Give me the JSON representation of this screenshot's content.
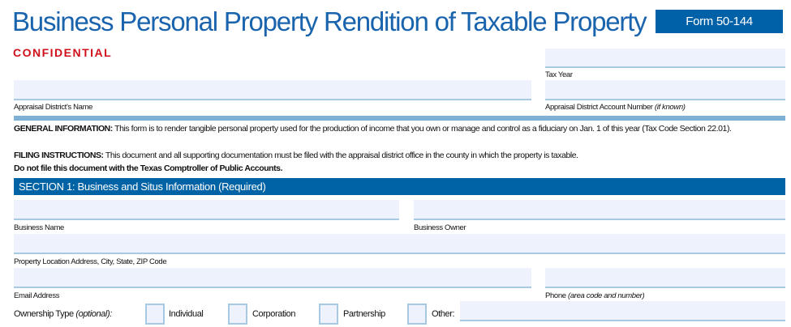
{
  "header": {
    "title": "Business Personal Property Rendition of Taxable Property",
    "form_number": "Form 50-144",
    "confidential": "CONFIDENTIAL"
  },
  "top_fields": {
    "tax_year": {
      "label": "Tax Year",
      "value": ""
    },
    "appraisal_district_name": {
      "label": "Appraisal District's Name",
      "value": ""
    },
    "account_number": {
      "label": "Appraisal District Account Number",
      "label_note": "(if known)",
      "value": ""
    }
  },
  "info": {
    "general_heading": "GENERAL INFORMATION:",
    "general_text": "This form is to render tangible personal property used for the production of income that you own or manage and control as a fiduciary on Jan. 1 of this year (Tax Code Section 22.01).",
    "filing_heading": "FILING INSTRUCTIONS:",
    "filing_text": "This document and all supporting documentation must be filed with the appraisal district office in the county in which the property is taxable.",
    "filing_warning": "Do not file this document with the Texas Comptroller of Public Accounts."
  },
  "section1": {
    "title": "SECTION 1: Business and Situs Information (Required)",
    "business_name": {
      "label": "Business Name",
      "value": ""
    },
    "business_owner": {
      "label": "Business Owner",
      "value": ""
    },
    "property_location": {
      "label": "Property Location Address, City, State, ZIP Code",
      "value": ""
    },
    "email": {
      "label": "Email Address",
      "value": ""
    },
    "phone": {
      "label": "Phone",
      "label_note": "(area code and number)",
      "value": ""
    },
    "ownership": {
      "label": "Ownership Type",
      "label_note": "(optional):",
      "options": [
        {
          "label": "Individual",
          "checked": false
        },
        {
          "label": "Corporation",
          "checked": false
        },
        {
          "label": "Partnership",
          "checked": false
        },
        {
          "label": "Other:",
          "checked": false
        }
      ],
      "other_value": ""
    }
  },
  "colors": {
    "brand_blue": "#0061a8",
    "confidential_red": "#d0101a",
    "field_bg": "#eef2fd",
    "field_border": "#a8c9e2"
  }
}
